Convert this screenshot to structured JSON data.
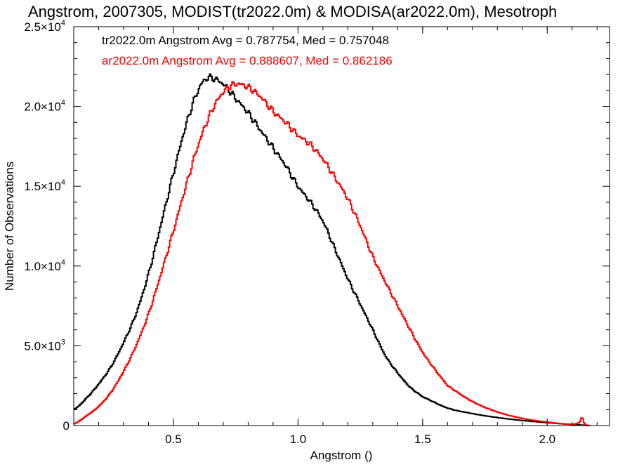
{
  "chart_data": {
    "type": "line",
    "title": "Angstrom, 2007305, MODIST(tr2022.0m) & MODISA(ar2022.0m), Mesotroph",
    "xlabel": "Angstrom ()",
    "ylabel": "Number of Observations",
    "xlim": [
      0.1,
      2.25
    ],
    "ylim": [
      0,
      25000
    ],
    "x_ticks": [
      {
        "value": 0.5,
        "label": "0.5"
      },
      {
        "value": 1.0,
        "label": "1.0"
      },
      {
        "value": 1.5,
        "label": "1.5"
      },
      {
        "value": 2.0,
        "label": "2.0"
      }
    ],
    "y_ticks": [
      {
        "value": 0,
        "base": "0",
        "exp": ""
      },
      {
        "value": 5000,
        "base": "5.0×10",
        "exp": "3"
      },
      {
        "value": 10000,
        "base": "1.0×10",
        "exp": "4"
      },
      {
        "value": 15000,
        "base": "1.5×10",
        "exp": "4"
      },
      {
        "value": 20000,
        "base": "2.0×10",
        "exp": "4"
      },
      {
        "value": 25000,
        "base": "2.5×10",
        "exp": "4"
      }
    ],
    "annotations": [
      {
        "text": "tr2022.0m Angstrom Avg = 0.787754, Med = 0.757048",
        "color": "#000000"
      },
      {
        "text": "ar2022.0m Angstrom Avg = 0.888607, Med = 0.862186",
        "color": "#ff0000"
      }
    ],
    "series": [
      {
        "color": "#000000",
        "step": true,
        "points": [
          [
            0.1,
            1000
          ],
          [
            0.15,
            1700
          ],
          [
            0.2,
            2600
          ],
          [
            0.25,
            3700
          ],
          [
            0.3,
            5200
          ],
          [
            0.35,
            7000
          ],
          [
            0.4,
            9500
          ],
          [
            0.45,
            12600
          ],
          [
            0.5,
            15800
          ],
          [
            0.55,
            18800
          ],
          [
            0.6,
            21000
          ],
          [
            0.63,
            21700
          ],
          [
            0.65,
            21800
          ],
          [
            0.7,
            21400
          ],
          [
            0.75,
            20500
          ],
          [
            0.8,
            19600
          ],
          [
            0.85,
            18500
          ],
          [
            0.9,
            17400
          ],
          [
            0.95,
            16300
          ],
          [
            1.0,
            15000
          ],
          [
            1.05,
            14000
          ],
          [
            1.1,
            12800
          ],
          [
            1.15,
            11000
          ],
          [
            1.2,
            9200
          ],
          [
            1.25,
            7600
          ],
          [
            1.3,
            6000
          ],
          [
            1.35,
            4400
          ],
          [
            1.4,
            3300
          ],
          [
            1.45,
            2400
          ],
          [
            1.5,
            1800
          ],
          [
            1.6,
            1100
          ],
          [
            1.7,
            750
          ],
          [
            1.8,
            500
          ],
          [
            1.9,
            320
          ],
          [
            2.0,
            180
          ],
          [
            2.1,
            70
          ],
          [
            2.15,
            20
          ],
          [
            2.17,
            0
          ]
        ]
      },
      {
        "color": "#ff0000",
        "step": true,
        "points": [
          [
            0.1,
            100
          ],
          [
            0.15,
            600
          ],
          [
            0.2,
            1200
          ],
          [
            0.25,
            2100
          ],
          [
            0.3,
            3400
          ],
          [
            0.35,
            5000
          ],
          [
            0.4,
            7000
          ],
          [
            0.45,
            9500
          ],
          [
            0.5,
            12200
          ],
          [
            0.55,
            15000
          ],
          [
            0.6,
            17600
          ],
          [
            0.65,
            19600
          ],
          [
            0.7,
            20900
          ],
          [
            0.75,
            21400
          ],
          [
            0.8,
            21200
          ],
          [
            0.85,
            20600
          ],
          [
            0.9,
            19700
          ],
          [
            0.95,
            19000
          ],
          [
            1.0,
            18200
          ],
          [
            1.05,
            17600
          ],
          [
            1.1,
            16700
          ],
          [
            1.15,
            15500
          ],
          [
            1.2,
            14200
          ],
          [
            1.25,
            12500
          ],
          [
            1.3,
            10600
          ],
          [
            1.35,
            9000
          ],
          [
            1.4,
            7500
          ],
          [
            1.45,
            6000
          ],
          [
            1.5,
            4600
          ],
          [
            1.55,
            3500
          ],
          [
            1.6,
            2500
          ],
          [
            1.7,
            1500
          ],
          [
            1.8,
            850
          ],
          [
            1.9,
            450
          ],
          [
            2.0,
            220
          ],
          [
            2.1,
            80
          ],
          [
            2.13,
            200
          ],
          [
            2.14,
            500
          ],
          [
            2.15,
            80
          ],
          [
            2.17,
            0
          ]
        ]
      }
    ]
  }
}
